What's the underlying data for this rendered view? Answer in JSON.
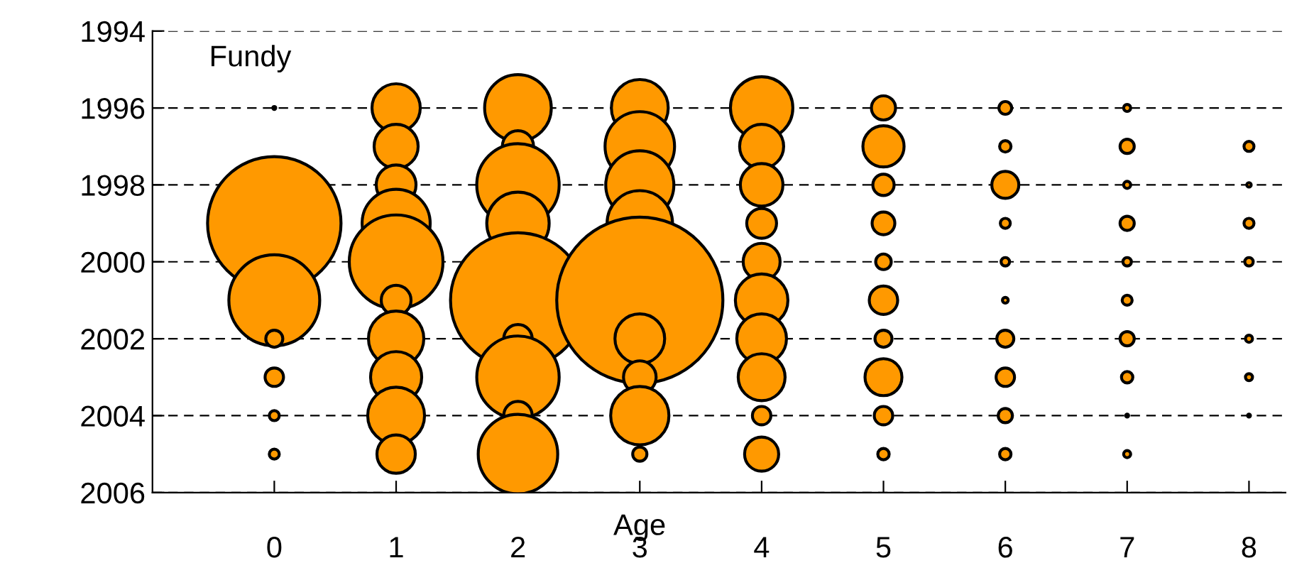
{
  "chart_data": {
    "type": "bubble",
    "xlabel": "Age",
    "annotations": [
      "Fundy"
    ],
    "xlim": [
      -1,
      8.3
    ],
    "xticks": [
      0,
      1,
      2,
      3,
      4,
      5,
      6,
      7,
      8
    ],
    "ylim": [
      2006,
      1994
    ],
    "yticks": [
      1994,
      1996,
      1998,
      2000,
      2002,
      2004,
      2006
    ],
    "grid": "y",
    "legend": false,
    "series": [
      {
        "color": "#ff9900",
        "x": [
          0,
          0,
          0,
          0,
          0,
          0,
          0,
          1,
          1,
          1,
          1,
          1,
          1,
          1,
          1,
          1,
          1,
          2,
          2,
          2,
          2,
          2,
          2,
          2,
          2,
          2,
          3,
          3,
          3,
          3,
          3,
          3,
          3,
          3,
          3,
          4,
          4,
          4,
          4,
          4,
          4,
          4,
          4,
          4,
          4,
          5,
          5,
          5,
          5,
          5,
          5,
          5,
          5,
          5,
          5,
          6,
          6,
          6,
          6,
          6,
          6,
          6,
          6,
          6,
          6,
          7,
          7,
          7,
          7,
          7,
          7,
          7,
          7,
          7,
          7,
          8,
          8,
          8,
          8,
          8,
          8,
          8
        ],
        "values": [
          1996,
          1999,
          2001,
          2002,
          2003,
          2004,
          2005,
          1996,
          1997,
          1998,
          1999,
          2000,
          2001,
          2002,
          2003,
          2004,
          2005,
          1996,
          1997,
          1998,
          1999,
          2001,
          2002,
          2003,
          2004,
          2005,
          1996,
          1997,
          1998,
          1999,
          2001,
          2002,
          2003,
          2004,
          2005,
          1996,
          1997,
          1998,
          1999,
          2000,
          2001,
          2002,
          2003,
          2004,
          2005,
          1996,
          1997,
          1998,
          1999,
          2000,
          2001,
          2002,
          2003,
          2004,
          2005,
          1996,
          1997,
          1998,
          1999,
          2000,
          2001,
          2002,
          2003,
          2004,
          2005,
          1996,
          1997,
          1998,
          1999,
          2000,
          2001,
          2002,
          2003,
          2004,
          2005,
          1997,
          1998,
          1999,
          2000,
          2002,
          2003,
          2004
        ],
        "sizes": [
          0.0003,
          0.645,
          0.299,
          0.0105,
          0.0123,
          0.0036,
          0.0036,
          0.0844,
          0.0702,
          0.0573,
          0.168,
          0.318,
          0.0322,
          0.111,
          0.0947,
          0.117,
          0.0533,
          0.161,
          0.0354,
          0.246,
          0.141,
          0.659,
          0.0292,
          0.246,
          0.0292,
          0.229,
          0.117,
          0.175,
          0.168,
          0.155,
          1,
          0.0895,
          0.0386,
          0.123,
          0.0073,
          0.141,
          0.0702,
          0.0657,
          0.0322,
          0.0494,
          0.1,
          0.0895,
          0.0796,
          0.0123,
          0.0421,
          0.0211,
          0.0614,
          0.0164,
          0.0187,
          0.0088,
          0.0292,
          0.0105,
          0.0494,
          0.0123,
          0.0047,
          0.0059,
          0.0047,
          0.0264,
          0.0036,
          0.0026,
          0.0012,
          0.0105,
          0.0123,
          0.0073,
          0.0047,
          0.0018,
          0.0073,
          0.0018,
          0.0073,
          0.0026,
          0.0036,
          0.0073,
          0.0047,
          0.0003,
          0.0018,
          0.0036,
          0.0007,
          0.0036,
          0.0026,
          0.0018,
          0.0018,
          0.0003
        ]
      }
    ]
  }
}
